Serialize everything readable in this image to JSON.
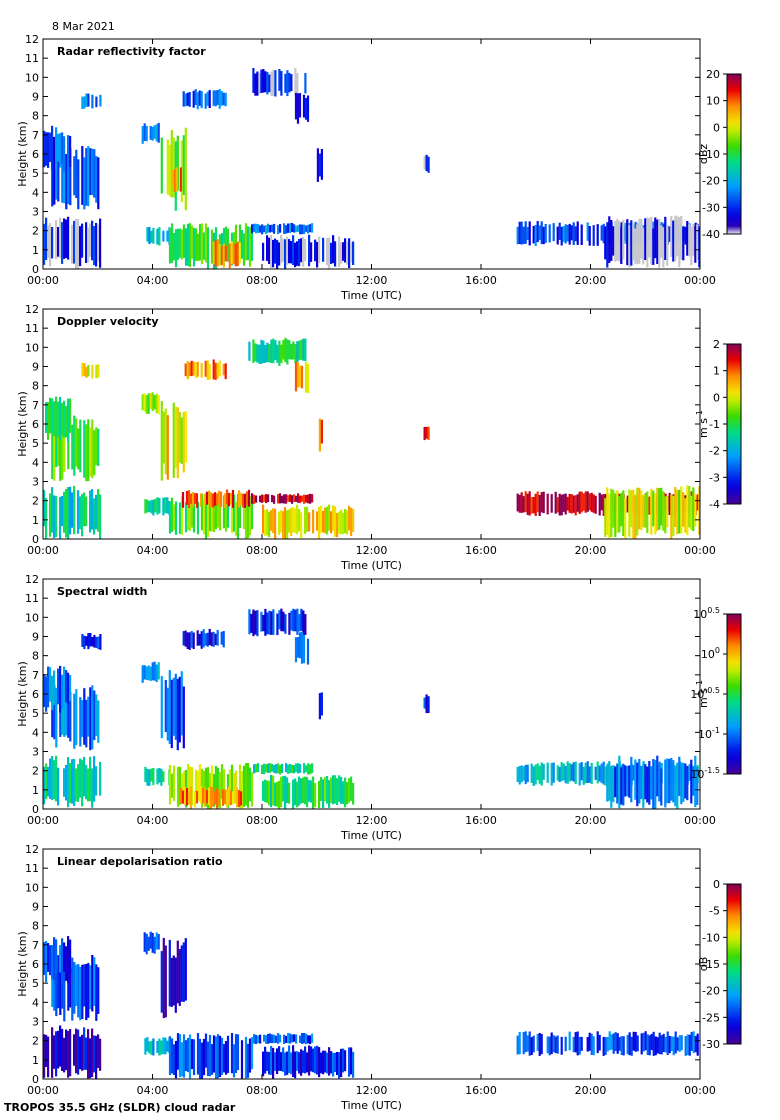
{
  "header": {
    "date": "8 Mar 2021"
  },
  "footer": {
    "instrument": "TROPOS 35.5 GHz (SLDR) cloud radar"
  },
  "chart_data": [
    {
      "type": "heatmap",
      "title": "Radar reflectivity factor",
      "xlabel": "Time (UTC)",
      "ylabel": "Height (km)",
      "xticks": [
        "00:00",
        "04:00",
        "08:00",
        "12:00",
        "16:00",
        "20:00",
        "00:00"
      ],
      "yticks": [
        "0",
        "1",
        "2",
        "3",
        "4",
        "5",
        "6",
        "7",
        "8",
        "9",
        "10",
        "11",
        "12"
      ],
      "ylim": [
        0,
        12
      ],
      "colorbar": {
        "unit": "dBz",
        "ticks": [
          "20",
          "10",
          "0",
          "-10",
          "-20",
          "-30",
          "-40"
        ],
        "range": [
          -40,
          20
        ],
        "gray_low": true
      },
      "regions": [
        {
          "t0": 0.0,
          "t1": 2.1,
          "h0": 0.0,
          "h1": 2.8,
          "v": 0.1
        },
        {
          "t0": 0.3,
          "t1": 2.0,
          "h0": 3.0,
          "h1": 6.5,
          "v": 0.22
        },
        {
          "t0": 0.0,
          "t1": 1.0,
          "h0": 5.0,
          "h1": 7.5,
          "v": 0.2
        },
        {
          "t0": 1.4,
          "t1": 2.1,
          "h0": 8.3,
          "h1": 9.2,
          "v": 0.25
        },
        {
          "t0": 3.6,
          "t1": 4.2,
          "h0": 6.5,
          "h1": 7.7,
          "v": 0.3
        },
        {
          "t0": 4.3,
          "t1": 5.2,
          "h0": 3.0,
          "h1": 7.4,
          "v": 0.55
        },
        {
          "t0": 4.7,
          "t1": 5.0,
          "h0": 4.0,
          "h1": 5.4,
          "v": 0.8
        },
        {
          "t0": 3.7,
          "t1": 4.6,
          "h0": 1.2,
          "h1": 2.2,
          "v": 0.35
        },
        {
          "t0": 4.6,
          "t1": 7.6,
          "h0": 0.0,
          "h1": 2.4,
          "v": 0.5
        },
        {
          "t0": 6.2,
          "t1": 7.2,
          "h0": 0.0,
          "h1": 1.6,
          "v": 0.75
        },
        {
          "t0": 5.1,
          "t1": 6.7,
          "h0": 8.3,
          "h1": 9.4,
          "v": 0.2
        },
        {
          "t0": 7.5,
          "t1": 9.6,
          "h0": 9.0,
          "h1": 10.5,
          "v": 0.15
        },
        {
          "t0": 9.2,
          "t1": 9.7,
          "h0": 7.5,
          "h1": 9.3,
          "v": 0.18
        },
        {
          "t0": 7.6,
          "t1": 9.8,
          "h0": 1.8,
          "h1": 2.4,
          "v": 0.25
        },
        {
          "t0": 8.0,
          "t1": 11.3,
          "h0": 0.0,
          "h1": 1.8,
          "v": 0.1
        },
        {
          "t0": 10.0,
          "t1": 10.2,
          "h0": 4.5,
          "h1": 6.5,
          "v": 0.15
        },
        {
          "t0": 13.9,
          "t1": 14.1,
          "h0": 5.0,
          "h1": 6.0,
          "v": 0.08
        },
        {
          "t0": 17.3,
          "t1": 23.9,
          "h0": 1.2,
          "h1": 2.5,
          "v": 0.2
        },
        {
          "t0": 20.5,
          "t1": 24.0,
          "h0": 0.0,
          "h1": 2.8,
          "v": 0.05
        }
      ]
    },
    {
      "type": "heatmap",
      "title": "Doppler velocity",
      "xlabel": "Time (UTC)",
      "ylabel": "Height (km)",
      "xticks": [
        "00:00",
        "04:00",
        "08:00",
        "12:00",
        "16:00",
        "20:00",
        "00:00"
      ],
      "yticks": [
        "0",
        "1",
        "2",
        "3",
        "4",
        "5",
        "6",
        "7",
        "8",
        "9",
        "10",
        "11",
        "12"
      ],
      "ylim": [
        0,
        12
      ],
      "colorbar": {
        "unit": "m s-1",
        "ticks": [
          "2",
          "1",
          "0",
          "-1",
          "-2",
          "-3",
          "-4"
        ],
        "range": [
          -4,
          2
        ],
        "gray_low": false
      },
      "regions": [
        {
          "t0": 0.0,
          "t1": 2.1,
          "h0": 0.0,
          "h1": 2.8,
          "v": 0.4
        },
        {
          "t0": 0.3,
          "t1": 2.0,
          "h0": 3.0,
          "h1": 6.5,
          "v": 0.55
        },
        {
          "t0": 0.0,
          "t1": 1.0,
          "h0": 5.0,
          "h1": 7.5,
          "v": 0.45
        },
        {
          "t0": 1.4,
          "t1": 2.1,
          "h0": 8.3,
          "h1": 9.2,
          "v": 0.7
        },
        {
          "t0": 3.6,
          "t1": 4.2,
          "h0": 6.5,
          "h1": 7.7,
          "v": 0.6
        },
        {
          "t0": 4.3,
          "t1": 5.2,
          "h0": 3.0,
          "h1": 7.4,
          "v": 0.7
        },
        {
          "t0": 3.7,
          "t1": 4.6,
          "h0": 1.2,
          "h1": 2.2,
          "v": 0.45
        },
        {
          "t0": 4.6,
          "t1": 7.6,
          "h0": 0.0,
          "h1": 2.4,
          "v": 0.55
        },
        {
          "t0": 5.0,
          "t1": 7.6,
          "h0": 1.6,
          "h1": 2.6,
          "v": 0.85
        },
        {
          "t0": 5.1,
          "t1": 6.7,
          "h0": 8.3,
          "h1": 9.4,
          "v": 0.78
        },
        {
          "t0": 7.5,
          "t1": 9.6,
          "h0": 9.0,
          "h1": 10.5,
          "v": 0.45
        },
        {
          "t0": 9.2,
          "t1": 9.7,
          "h0": 7.5,
          "h1": 9.3,
          "v": 0.75
        },
        {
          "t0": 7.6,
          "t1": 9.8,
          "h0": 1.8,
          "h1": 2.4,
          "v": 0.95
        },
        {
          "t0": 8.0,
          "t1": 11.3,
          "h0": 0.0,
          "h1": 1.8,
          "v": 0.7
        },
        {
          "t0": 10.0,
          "t1": 10.2,
          "h0": 4.5,
          "h1": 6.5,
          "v": 0.85
        },
        {
          "t0": 13.9,
          "t1": 14.1,
          "h0": 5.0,
          "h1": 6.0,
          "v": 0.9
        },
        {
          "t0": 17.3,
          "t1": 23.9,
          "h0": 1.2,
          "h1": 2.5,
          "v": 0.95
        },
        {
          "t0": 20.5,
          "t1": 24.0,
          "h0": 0.0,
          "h1": 2.8,
          "v": 0.65
        }
      ]
    },
    {
      "type": "heatmap",
      "title": "Spectral width",
      "xlabel": "Time (UTC)",
      "ylabel": "Height (km)",
      "xticks": [
        "00:00",
        "04:00",
        "08:00",
        "12:00",
        "16:00",
        "20:00",
        "00:00"
      ],
      "yticks": [
        "0",
        "1",
        "2",
        "3",
        "4",
        "5",
        "6",
        "7",
        "8",
        "9",
        "10",
        "11",
        "12"
      ],
      "ylim": [
        0,
        12
      ],
      "colorbar": {
        "unit": "m s-1",
        "ticks": [
          "10^0.5",
          "10^0",
          "10^-0.5",
          "10^-1",
          "10^-1.5"
        ],
        "range": [
          -1.5,
          0.5
        ],
        "log": true,
        "gray_low": false
      },
      "regions": [
        {
          "t0": 0.0,
          "t1": 2.1,
          "h0": 0.0,
          "h1": 2.8,
          "v": 0.4
        },
        {
          "t0": 0.3,
          "t1": 2.0,
          "h0": 3.0,
          "h1": 6.5,
          "v": 0.25
        },
        {
          "t0": 0.0,
          "t1": 1.0,
          "h0": 5.0,
          "h1": 7.5,
          "v": 0.25
        },
        {
          "t0": 1.4,
          "t1": 2.1,
          "h0": 8.3,
          "h1": 9.2,
          "v": 0.18
        },
        {
          "t0": 3.6,
          "t1": 4.2,
          "h0": 6.5,
          "h1": 7.7,
          "v": 0.3
        },
        {
          "t0": 4.3,
          "t1": 5.2,
          "h0": 3.0,
          "h1": 7.4,
          "v": 0.2
        },
        {
          "t0": 3.7,
          "t1": 4.6,
          "h0": 1.2,
          "h1": 2.2,
          "v": 0.4
        },
        {
          "t0": 4.6,
          "t1": 7.6,
          "h0": 0.0,
          "h1": 2.4,
          "v": 0.62
        },
        {
          "t0": 5.0,
          "t1": 7.2,
          "h0": 0.0,
          "h1": 1.2,
          "v": 0.78
        },
        {
          "t0": 5.1,
          "t1": 6.7,
          "h0": 8.3,
          "h1": 9.4,
          "v": 0.15
        },
        {
          "t0": 7.5,
          "t1": 9.6,
          "h0": 9.0,
          "h1": 10.5,
          "v": 0.15
        },
        {
          "t0": 9.2,
          "t1": 9.7,
          "h0": 7.5,
          "h1": 9.3,
          "v": 0.18
        },
        {
          "t0": 7.6,
          "t1": 9.8,
          "h0": 1.8,
          "h1": 2.4,
          "v": 0.45
        },
        {
          "t0": 8.0,
          "t1": 11.3,
          "h0": 0.0,
          "h1": 1.8,
          "v": 0.5
        },
        {
          "t0": 10.0,
          "t1": 10.2,
          "h0": 4.5,
          "h1": 6.5,
          "v": 0.18
        },
        {
          "t0": 13.9,
          "t1": 14.1,
          "h0": 5.0,
          "h1": 6.0,
          "v": 0.15
        },
        {
          "t0": 17.3,
          "t1": 23.9,
          "h0": 1.2,
          "h1": 2.5,
          "v": 0.35
        },
        {
          "t0": 20.5,
          "t1": 24.0,
          "h0": 0.0,
          "h1": 2.8,
          "v": 0.25
        }
      ]
    },
    {
      "type": "heatmap",
      "title": "Linear depolarisation ratio",
      "xlabel": "Time (UTC)",
      "ylabel": "Height (km)",
      "xticks": [
        "00:00",
        "04:00",
        "08:00",
        "12:00",
        "16:00",
        "20:00",
        "00:00"
      ],
      "yticks": [
        "0",
        "1",
        "2",
        "3",
        "4",
        "5",
        "6",
        "7",
        "8",
        "9",
        "10",
        "11",
        "12"
      ],
      "ylim": [
        0,
        12
      ],
      "colorbar": {
        "unit": "dB",
        "ticks": [
          "0",
          "-5",
          "-10",
          "-15",
          "-20",
          "-25",
          "-30"
        ],
        "range": [
          -30,
          0
        ],
        "gray_low": false
      },
      "regions": [
        {
          "t0": 0.0,
          "t1": 2.1,
          "h0": 0.0,
          "h1": 2.8,
          "v": 0.1
        },
        {
          "t0": 0.3,
          "t1": 2.0,
          "h0": 3.0,
          "h1": 6.5,
          "v": 0.2
        },
        {
          "t0": 0.0,
          "t1": 1.0,
          "h0": 5.0,
          "h1": 7.5,
          "v": 0.18
        },
        {
          "t0": 3.6,
          "t1": 4.2,
          "h0": 6.5,
          "h1": 7.7,
          "v": 0.25
        },
        {
          "t0": 4.3,
          "t1": 5.2,
          "h0": 3.0,
          "h1": 7.4,
          "v": 0.08
        },
        {
          "t0": 3.7,
          "t1": 4.6,
          "h0": 1.2,
          "h1": 2.2,
          "v": 0.35
        },
        {
          "t0": 4.6,
          "t1": 7.6,
          "h0": 0.0,
          "h1": 2.4,
          "v": 0.2
        },
        {
          "t0": 7.6,
          "t1": 9.8,
          "h0": 1.8,
          "h1": 2.4,
          "v": 0.22
        },
        {
          "t0": 8.0,
          "t1": 11.3,
          "h0": 0.0,
          "h1": 1.8,
          "v": 0.15
        },
        {
          "t0": 17.3,
          "t1": 23.9,
          "h0": 1.2,
          "h1": 2.5,
          "v": 0.2
        }
      ]
    }
  ]
}
